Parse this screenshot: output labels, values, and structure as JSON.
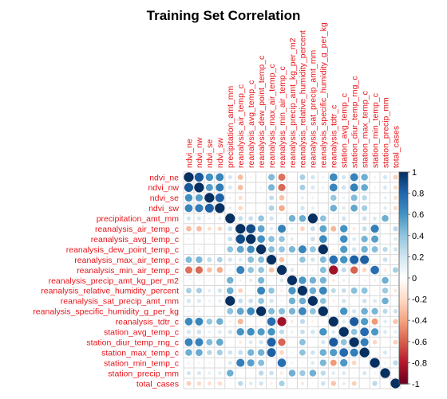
{
  "chart_data": {
    "type": "heatmap",
    "title": "Training Set Correlation",
    "variables": [
      "ndvi_ne",
      "ndvi_nw",
      "ndvi_se",
      "ndvi_sw",
      "precipitation_amt_mm",
      "reanalysis_air_temp_c",
      "reanalysis_avg_temp_c",
      "reanalysis_dew_point_temp_c",
      "reanalysis_max_air_temp_c",
      "reanalysis_min_air_temp_c",
      "reanalysis_precip_amt_kg_per_m2",
      "reanalysis_relative_humidity_percent",
      "reanalysis_sat_precip_amt_mm",
      "reanalysis_specific_humidity_g_per_kg",
      "reanalysis_tdtr_c",
      "station_avg_temp_c",
      "station_diur_temp_rng_c",
      "station_max_temp_c",
      "station_min_temp_c",
      "station_precip_mm",
      "total_cases"
    ],
    "matrix": [
      [
        1.0,
        0.85,
        0.61,
        0.66,
        0.19,
        -0.31,
        -0.06,
        0.05,
        0.44,
        -0.55,
        0.02,
        0.33,
        0.19,
        0.08,
        0.64,
        0.19,
        0.67,
        0.49,
        -0.08,
        0.19,
        -0.24
      ],
      [
        0.85,
        1.0,
        0.56,
        0.7,
        0.17,
        -0.31,
        -0.04,
        0.06,
        0.46,
        -0.57,
        0.05,
        0.34,
        0.17,
        0.09,
        0.66,
        0.21,
        0.68,
        0.51,
        -0.07,
        0.17,
        -0.2
      ],
      [
        0.61,
        0.56,
        1.0,
        0.82,
        0.08,
        -0.18,
        -0.05,
        -0.02,
        0.25,
        -0.3,
        -0.05,
        0.12,
        0.08,
        -0.02,
        0.39,
        0.09,
        0.44,
        0.28,
        -0.06,
        0.11,
        -0.17
      ],
      [
        0.66,
        0.7,
        0.82,
        1.0,
        0.12,
        -0.21,
        -0.02,
        0.0,
        0.32,
        -0.38,
        0.01,
        0.2,
        0.12,
        0.02,
        0.49,
        0.15,
        0.52,
        0.35,
        -0.05,
        0.14,
        -0.2
      ],
      [
        0.19,
        0.17,
        0.08,
        0.12,
        1.0,
        0.24,
        0.23,
        0.4,
        0.2,
        0.07,
        0.48,
        0.5,
        1.0,
        0.41,
        -0.08,
        0.2,
        0.02,
        0.21,
        0.16,
        0.49,
        0.04
      ],
      [
        -0.31,
        -0.31,
        -0.18,
        -0.21,
        0.24,
        1.0,
        0.9,
        0.53,
        0.15,
        0.68,
        0.09,
        -0.23,
        0.24,
        0.53,
        -0.33,
        0.6,
        -0.12,
        0.24,
        0.69,
        0.03,
        0.27
      ],
      [
        -0.06,
        -0.04,
        -0.05,
        -0.02,
        0.23,
        0.9,
        1.0,
        0.62,
        0.42,
        0.4,
        0.13,
        0.04,
        0.23,
        0.64,
        -0.03,
        0.62,
        0.16,
        0.47,
        0.55,
        0.04,
        0.15
      ],
      [
        0.05,
        0.06,
        -0.02,
        0.0,
        0.4,
        0.53,
        0.62,
        1.0,
        0.43,
        0.4,
        0.46,
        0.67,
        0.4,
        1.0,
        -0.06,
        0.57,
        0.2,
        0.48,
        0.43,
        0.27,
        0.2
      ],
      [
        0.44,
        0.46,
        0.25,
        0.32,
        0.2,
        0.15,
        0.42,
        0.43,
        1.0,
        -0.29,
        0.05,
        0.4,
        0.2,
        0.44,
        0.76,
        0.6,
        0.82,
        0.82,
        -0.03,
        0.22,
        -0.08
      ],
      [
        -0.55,
        -0.57,
        -0.3,
        -0.38,
        0.07,
        0.68,
        0.4,
        0.4,
        -0.29,
        1.0,
        0.16,
        -0.09,
        0.07,
        0.43,
        -0.85,
        0.26,
        -0.59,
        -0.22,
        0.76,
        -0.12,
        0.34
      ],
      [
        0.02,
        0.05,
        -0.05,
        0.01,
        0.48,
        0.09,
        0.13,
        0.46,
        0.05,
        0.16,
        1.0,
        0.59,
        0.48,
        0.47,
        -0.11,
        0.1,
        0.01,
        0.06,
        0.08,
        0.49,
        0.03
      ],
      [
        0.33,
        0.34,
        0.12,
        0.2,
        0.5,
        -0.23,
        0.04,
        0.67,
        0.4,
        -0.09,
        0.59,
        1.0,
        0.5,
        0.66,
        0.26,
        0.23,
        0.42,
        0.41,
        -0.05,
        0.37,
        -0.13
      ],
      [
        0.19,
        0.17,
        0.08,
        0.12,
        1.0,
        0.24,
        0.23,
        0.4,
        0.2,
        0.07,
        0.48,
        0.5,
        1.0,
        0.41,
        -0.08,
        0.2,
        0.02,
        0.21,
        0.16,
        0.49,
        0.04
      ],
      [
        0.08,
        0.09,
        -0.02,
        0.02,
        0.41,
        0.53,
        0.64,
        1.0,
        0.44,
        0.43,
        0.47,
        0.66,
        0.41,
        1.0,
        -0.06,
        0.6,
        0.19,
        0.49,
        0.46,
        0.27,
        0.21
      ],
      [
        0.64,
        0.66,
        0.39,
        0.49,
        -0.08,
        -0.33,
        -0.03,
        -0.06,
        0.76,
        -0.85,
        -0.11,
        0.26,
        -0.08,
        -0.06,
        1.0,
        0.15,
        0.84,
        0.57,
        -0.43,
        0.14,
        -0.28
      ],
      [
        0.19,
        0.21,
        0.09,
        0.15,
        0.2,
        0.6,
        0.62,
        0.57,
        0.6,
        0.26,
        0.1,
        0.23,
        0.2,
        0.6,
        0.15,
        1.0,
        0.41,
        0.78,
        0.58,
        0.16,
        0.12
      ],
      [
        0.67,
        0.68,
        0.44,
        0.52,
        0.02,
        -0.12,
        0.16,
        0.2,
        0.82,
        -0.59,
        0.01,
        0.42,
        0.02,
        0.19,
        0.84,
        0.41,
        1.0,
        0.69,
        -0.22,
        0.05,
        -0.24
      ],
      [
        0.49,
        0.51,
        0.28,
        0.35,
        0.21,
        0.24,
        0.47,
        0.48,
        0.82,
        -0.22,
        0.06,
        0.41,
        0.21,
        0.49,
        0.57,
        0.78,
        0.69,
        1.0,
        0.05,
        0.18,
        -0.04
      ],
      [
        -0.08,
        -0.07,
        -0.06,
        -0.05,
        0.16,
        0.69,
        0.55,
        0.43,
        -0.03,
        0.76,
        0.08,
        -0.05,
        0.16,
        0.46,
        -0.43,
        0.58,
        -0.22,
        0.05,
        1.0,
        0.07,
        0.27
      ],
      [
        0.19,
        0.17,
        0.11,
        0.14,
        0.49,
        0.03,
        0.04,
        0.27,
        0.22,
        -0.12,
        0.49,
        0.37,
        0.49,
        0.27,
        0.14,
        0.16,
        0.05,
        0.18,
        0.07,
        1.0,
        0.03
      ],
      [
        -0.24,
        -0.2,
        -0.17,
        -0.2,
        0.04,
        0.27,
        0.15,
        0.2,
        -0.08,
        0.34,
        0.03,
        -0.13,
        0.04,
        0.21,
        -0.28,
        0.12,
        -0.24,
        -0.04,
        0.27,
        0.03,
        1.0
      ]
    ],
    "color_scale": {
      "range": [
        -1,
        1
      ],
      "ticks": [
        "1",
        "0.8",
        "0.6",
        "0.4",
        "0.2",
        "0",
        "-0.2",
        "-0.4",
        "-0.6",
        "-0.8",
        "-1"
      ],
      "stops": [
        "#67001f",
        "#b2182b",
        "#d6604d",
        "#f4a582",
        "#fddbc7",
        "#ffffff",
        "#d1e5f0",
        "#92c5de",
        "#4393c3",
        "#2166ac",
        "#053061"
      ]
    },
    "label_color": "#e8141a",
    "grid": true
  }
}
